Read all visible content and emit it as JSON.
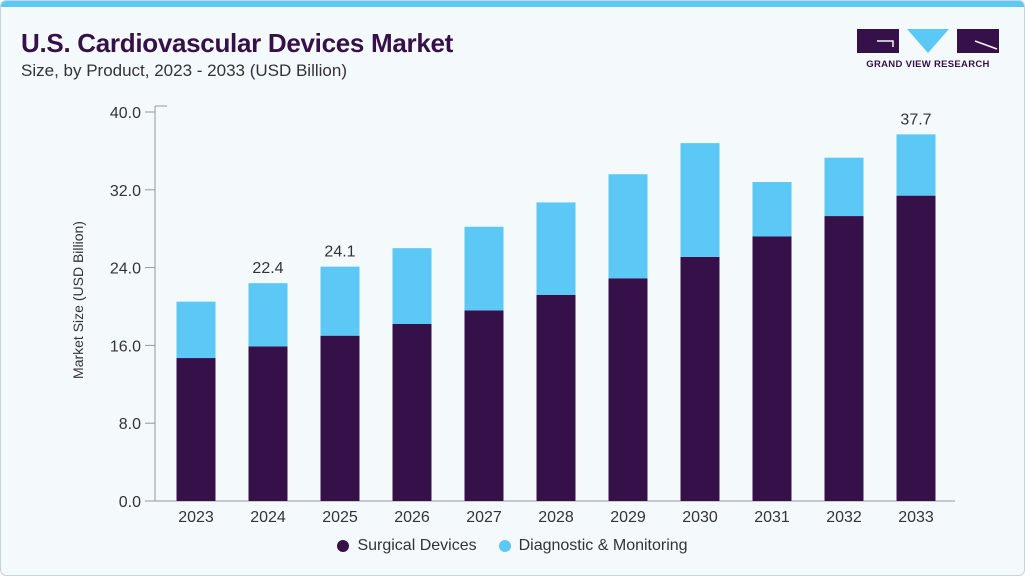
{
  "header": {
    "title": "U.S. Cardiovascular Devices Market",
    "subtitle": "Size, by Product, 2023 - 2033 (USD Billion)",
    "logo_text": "GRAND VIEW RESEARCH"
  },
  "colors": {
    "surgical": "#361049",
    "diagnostic": "#5bc8f5",
    "accent": "#5bc8f5"
  },
  "chart_data": {
    "type": "bar",
    "stacked": true,
    "title": "U.S. Cardiovascular Devices Market",
    "subtitle": "Size, by Product, 2023 - 2033 (USD Billion)",
    "xlabel": "",
    "ylabel": "Market Size (USD Billion)",
    "ylim": [
      0,
      40
    ],
    "yticks": [
      "0.0",
      "8.0",
      "16.0",
      "24.0",
      "32.0",
      "40.0"
    ],
    "categories": [
      "2023",
      "2024",
      "2025",
      "2026",
      "2027",
      "2028",
      "2029",
      "2030",
      "2031",
      "2032",
      "2033"
    ],
    "series": [
      {
        "name": "Surgical Devices",
        "values": [
          14.7,
          15.9,
          17.0,
          18.2,
          19.6,
          21.2,
          22.9,
          25.1,
          27.2,
          29.3,
          31.4
        ]
      },
      {
        "name": "Diagnostic & Monitoring",
        "values": [
          5.8,
          6.5,
          7.1,
          7.8,
          8.6,
          9.5,
          10.7,
          11.7,
          5.6,
          6.0,
          6.3
        ]
      }
    ],
    "data_labels": {
      "2024": "22.4",
      "2025": "24.1",
      "2033": "37.7"
    },
    "grid": false,
    "legend": "bottom"
  }
}
